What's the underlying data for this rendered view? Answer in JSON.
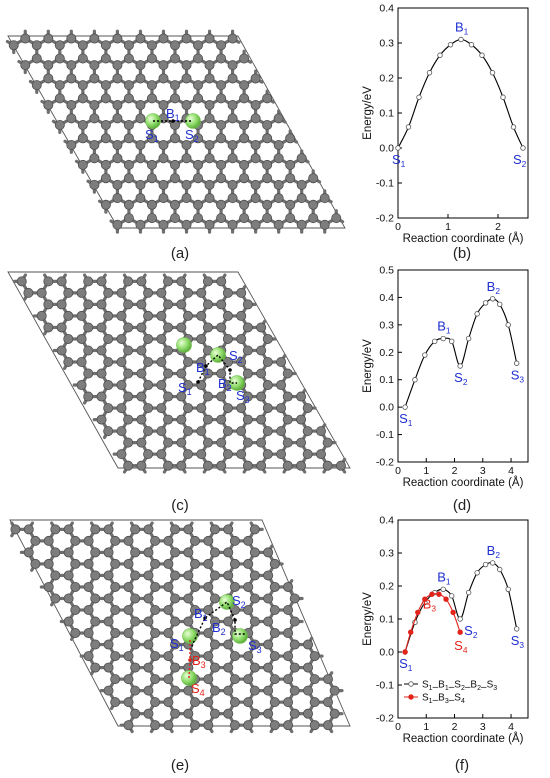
{
  "colors": {
    "atom": "#7d7d7d",
    "bond": "#6f6f6f",
    "li": "#8fdc6a",
    "path_black": "#000000",
    "path_red": "#e2231a",
    "site_blue": "#1f2fd0",
    "site_red": "#e2231a"
  },
  "panels": {
    "a": {
      "label": "(a)"
    },
    "b": {
      "label": "(b)"
    },
    "c": {
      "label": "(c)"
    },
    "d": {
      "label": "(d)"
    },
    "e": {
      "label": "(e)"
    },
    "f": {
      "label": "(f)"
    }
  },
  "structures": {
    "a": {
      "sites": [
        {
          "main": "S",
          "sub": "1",
          "color": "blue"
        },
        {
          "main": "B",
          "sub": "1",
          "color": "blue"
        },
        {
          "main": "S",
          "sub": "2",
          "color": "blue"
        }
      ]
    },
    "c": {
      "sites": [
        {
          "main": "S",
          "sub": "1",
          "color": "blue"
        },
        {
          "main": "B",
          "sub": "1",
          "color": "blue"
        },
        {
          "main": "S",
          "sub": "2",
          "color": "blue"
        },
        {
          "main": "B",
          "sub": "2",
          "color": "blue"
        },
        {
          "main": "S",
          "sub": "3",
          "color": "blue"
        }
      ]
    },
    "e": {
      "sites": [
        {
          "main": "S",
          "sub": "1",
          "color": "blue"
        },
        {
          "main": "B",
          "sub": "1",
          "color": "blue"
        },
        {
          "main": "S",
          "sub": "2",
          "color": "blue"
        },
        {
          "main": "B",
          "sub": "2",
          "color": "blue"
        },
        {
          "main": "S",
          "sub": "3",
          "color": "blue"
        },
        {
          "main": "B",
          "sub": "3",
          "color": "red"
        },
        {
          "main": "S",
          "sub": "4",
          "color": "red"
        }
      ]
    }
  },
  "chart_data": [
    {
      "panel": "b",
      "type": "line",
      "ylabel": "Energy/eV",
      "xlabel": "Reaction coordinate (Å)",
      "xlim": [
        0,
        2.6
      ],
      "ylim": [
        -0.2,
        0.4
      ],
      "xticks": [
        "0",
        "1",
        "2"
      ],
      "yticks": [
        "-0.2",
        "-0.1",
        "0.0",
        "0.1",
        "0.2",
        "0.3",
        "0.4"
      ],
      "series": [
        {
          "color": "black",
          "x": [
            0,
            0.21,
            0.42,
            0.63,
            0.84,
            1.05,
            1.26,
            1.47,
            1.68,
            1.89,
            2.1,
            2.31,
            2.5
          ],
          "y": [
            0.0,
            0.06,
            0.145,
            0.215,
            0.265,
            0.295,
            0.31,
            0.295,
            0.265,
            0.215,
            0.145,
            0.06,
            0.0
          ]
        }
      ],
      "point_labels": [
        {
          "main": "S",
          "sub": "1",
          "x": 0.0,
          "y": 0.0
        },
        {
          "main": "B",
          "sub": "1",
          "x": 1.26,
          "y": 0.31
        },
        {
          "main": "S",
          "sub": "2",
          "x": 2.5,
          "y": 0.0
        }
      ]
    },
    {
      "panel": "d",
      "type": "line",
      "ylabel": "Energy/eV",
      "xlabel": "Reaction coordinate (Å)",
      "xlim": [
        0,
        4.6
      ],
      "ylim": [
        -0.2,
        0.5
      ],
      "xticks": [
        "0",
        "1",
        "2",
        "3",
        "4"
      ],
      "yticks": [
        "-0.2",
        "-0.1",
        "0.0",
        "0.1",
        "0.2",
        "0.3",
        "0.4",
        "0.5"
      ],
      "series": [
        {
          "color": "black",
          "x": [
            0.25,
            0.6,
            0.95,
            1.3,
            1.6,
            1.9,
            2.2,
            2.5,
            2.8,
            3.1,
            3.35,
            3.6,
            3.9,
            4.2
          ],
          "y": [
            0.0,
            0.1,
            0.19,
            0.24,
            0.25,
            0.24,
            0.15,
            0.25,
            0.34,
            0.38,
            0.395,
            0.375,
            0.3,
            0.16
          ]
        }
      ],
      "point_labels": [
        {
          "main": "S",
          "sub": "1",
          "x": 0.25,
          "y": 0.0
        },
        {
          "main": "B",
          "sub": "1",
          "x": 1.6,
          "y": 0.25
        },
        {
          "main": "S",
          "sub": "2",
          "x": 2.2,
          "y": 0.15
        },
        {
          "main": "B",
          "sub": "2",
          "x": 3.35,
          "y": 0.395
        },
        {
          "main": "S",
          "sub": "3",
          "x": 4.2,
          "y": 0.16
        }
      ]
    },
    {
      "panel": "f",
      "type": "line",
      "ylabel": "Energy/eV",
      "xlabel": "Reaction coordinate (Å)",
      "xlim": [
        0,
        4.6
      ],
      "ylim": [
        -0.2,
        0.4
      ],
      "xticks": [
        "0",
        "1",
        "2",
        "3",
        "4"
      ],
      "yticks": [
        "-0.2",
        "-0.1",
        "0.0",
        "0.1",
        "0.2",
        "0.3",
        "0.4"
      ],
      "series": [
        {
          "name": "S1–B1–S2–B2–S3",
          "color": "black",
          "marker": "open-circle",
          "x": [
            0.25,
            0.6,
            0.95,
            1.3,
            1.6,
            1.9,
            2.2,
            2.5,
            2.8,
            3.1,
            3.35,
            3.6,
            3.9,
            4.2
          ],
          "y": [
            0.0,
            0.09,
            0.15,
            0.18,
            0.19,
            0.17,
            0.1,
            0.18,
            0.24,
            0.265,
            0.27,
            0.25,
            0.19,
            0.07
          ]
        },
        {
          "name": "S1–B3–S4",
          "color": "red",
          "marker": "filled-circle",
          "x": [
            0.25,
            0.45,
            0.7,
            0.95,
            1.2,
            1.45,
            1.7,
            1.95,
            2.2
          ],
          "y": [
            0.0,
            0.06,
            0.12,
            0.16,
            0.175,
            0.175,
            0.16,
            0.12,
            0.06
          ]
        }
      ],
      "point_labels": [
        {
          "main": "S",
          "sub": "1",
          "x": 0.25,
          "y": 0.0,
          "color": "blue"
        },
        {
          "main": "B",
          "sub": "1",
          "x": 1.6,
          "y": 0.19,
          "color": "blue"
        },
        {
          "main": "B",
          "sub": "3",
          "x": 1.3,
          "y": 0.175,
          "color": "red"
        },
        {
          "main": "S",
          "sub": "4",
          "x": 2.2,
          "y": 0.06,
          "color": "red"
        },
        {
          "main": "S",
          "sub": "2",
          "x": 2.2,
          "y": 0.1,
          "color": "blue"
        },
        {
          "main": "B",
          "sub": "2",
          "x": 3.35,
          "y": 0.27,
          "color": "blue"
        },
        {
          "main": "S",
          "sub": "3",
          "x": 4.2,
          "y": 0.07,
          "color": "blue"
        }
      ],
      "legend": [
        {
          "parts": [
            [
              "S",
              "1"
            ],
            [
              "B",
              "1"
            ],
            [
              "S",
              "2"
            ],
            [
              "B",
              "2"
            ],
            [
              "S",
              "3"
            ]
          ],
          "color": "black",
          "marker": "open-circle"
        },
        {
          "parts": [
            [
              "S",
              "1"
            ],
            [
              "B",
              "3"
            ],
            [
              "S",
              "4"
            ]
          ],
          "color": "red",
          "marker": "filled-circle"
        }
      ]
    }
  ]
}
